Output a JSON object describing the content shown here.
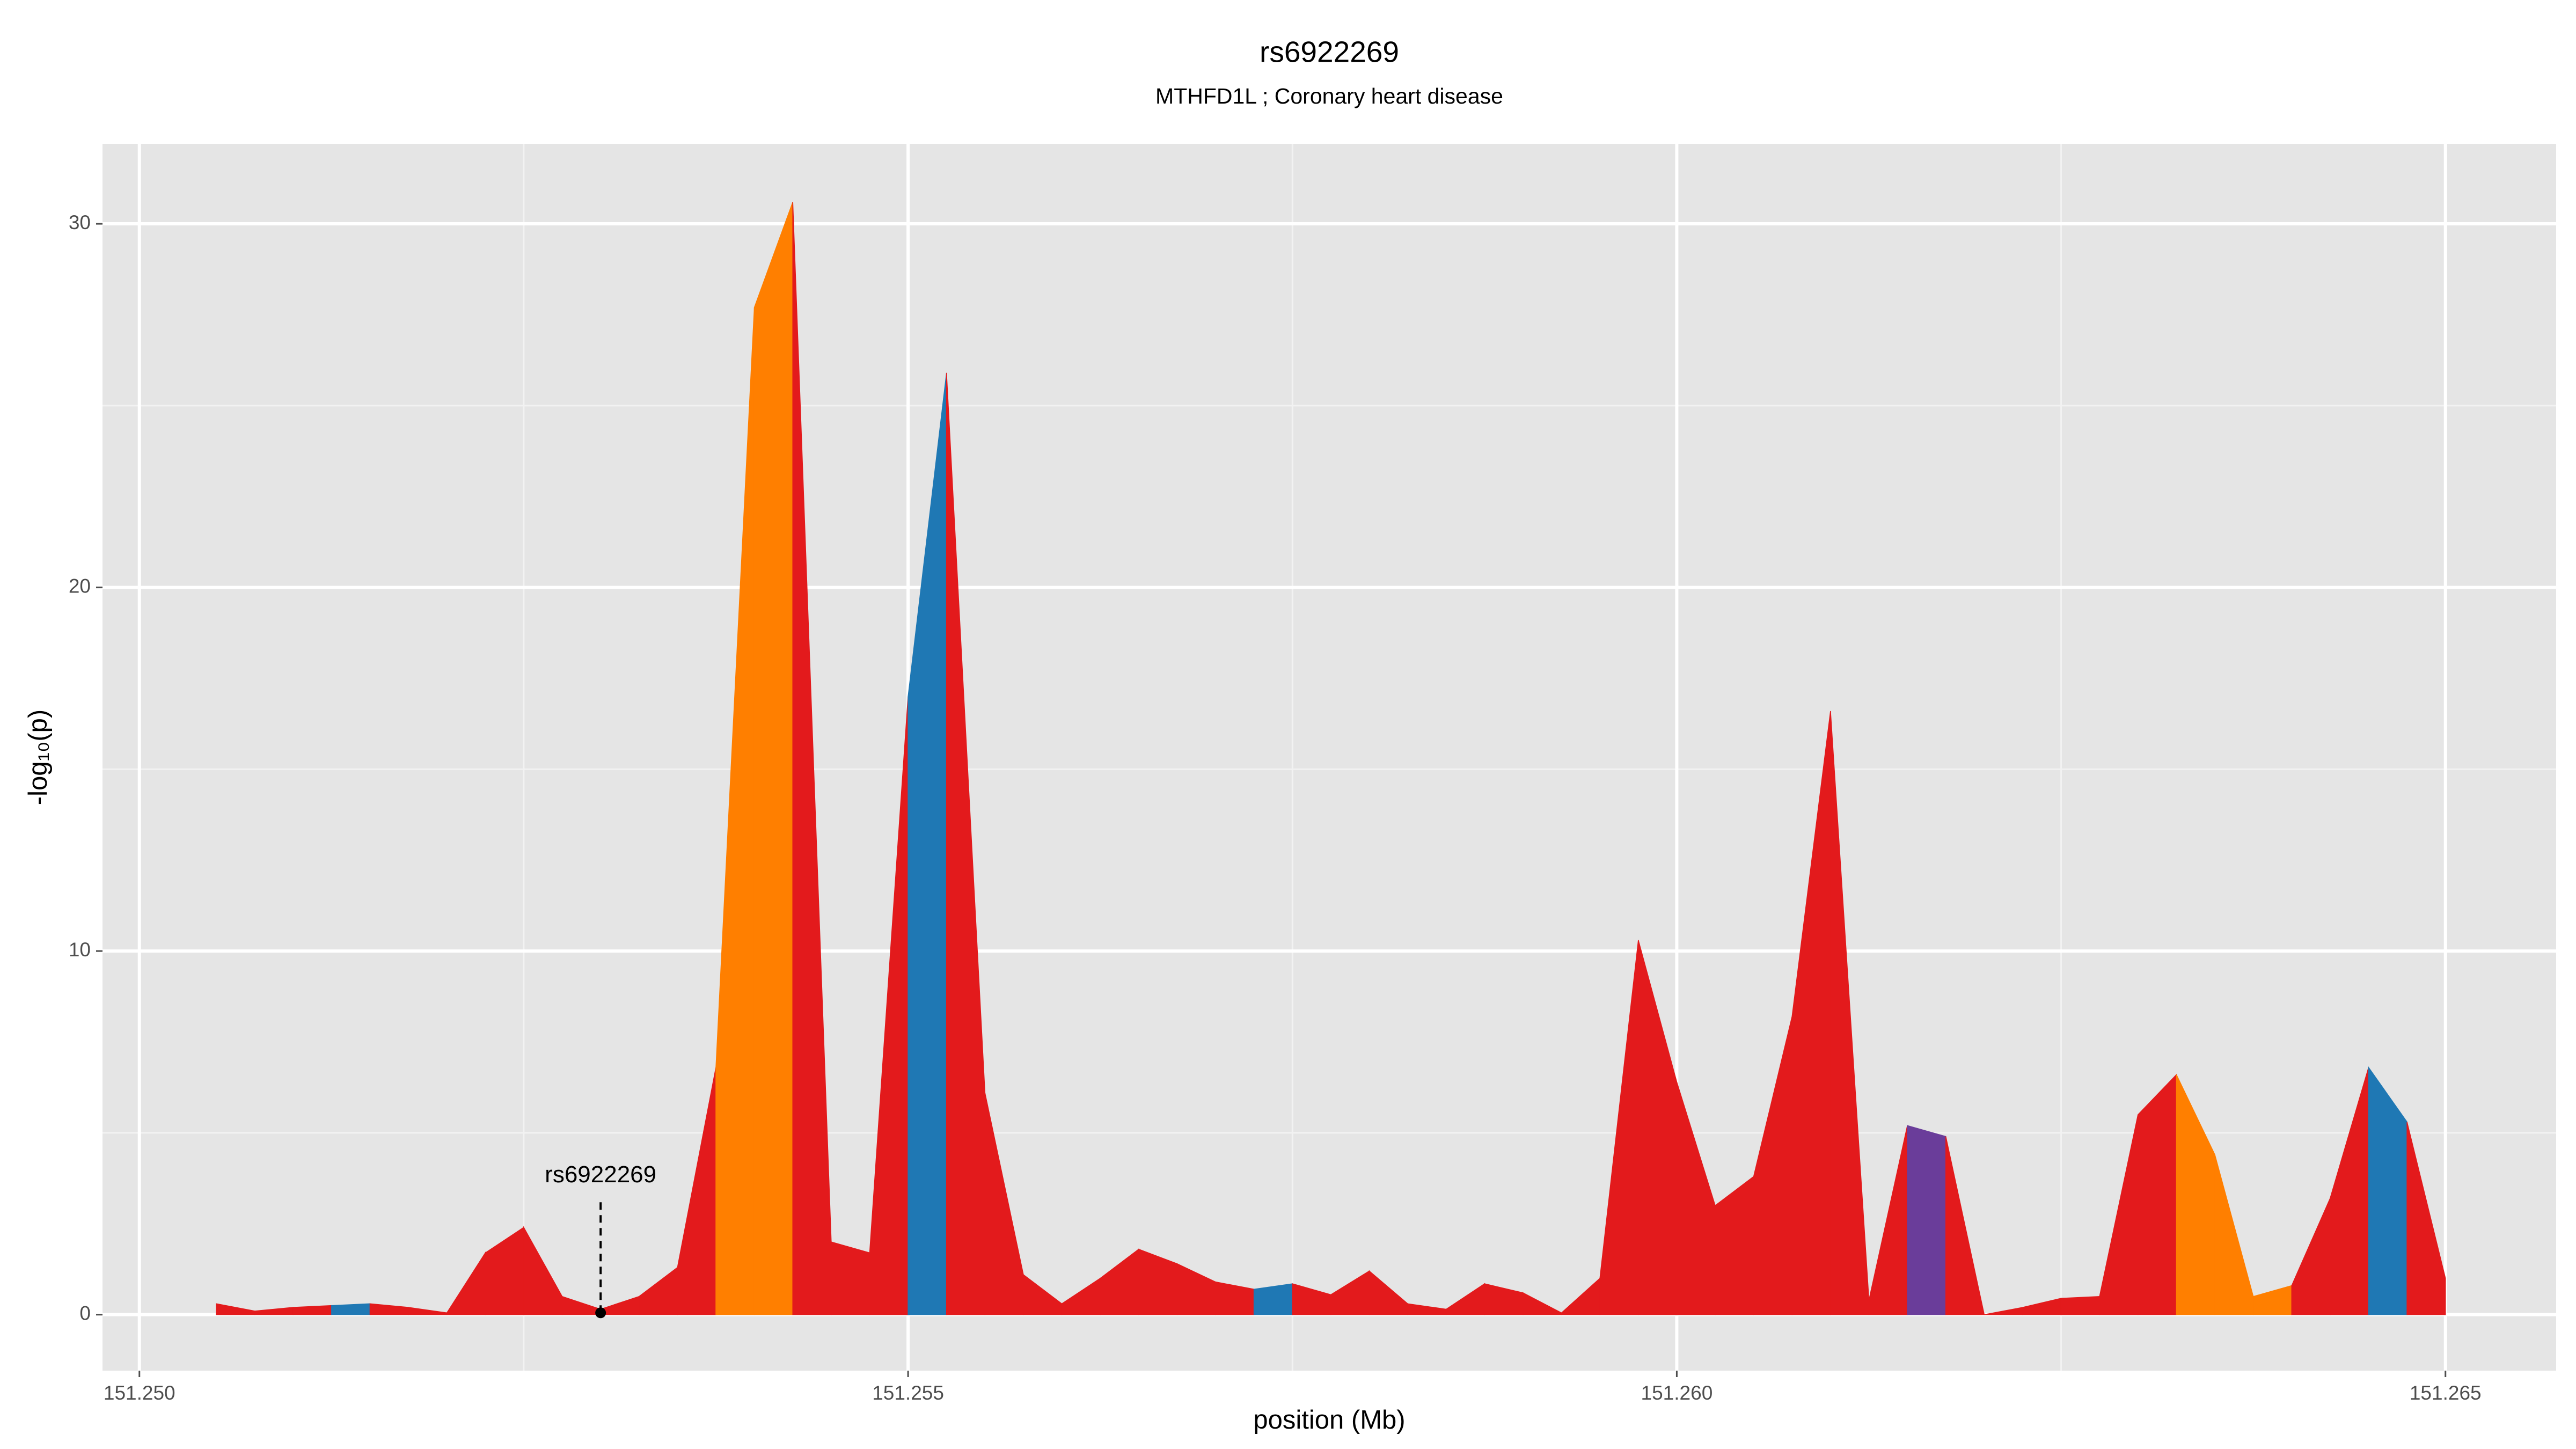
{
  "chart_data": {
    "type": "area",
    "title": "rs6922269",
    "subtitle": "MTHFD1L ; Coronary heart disease",
    "x_label": "position (Mb)",
    "y_label": "-log₁₀(p)",
    "x": [
      151.2505,
      151.25075,
      151.251,
      151.25125,
      151.2515,
      151.25175,
      151.252,
      151.25225,
      151.2525,
      151.25275,
      151.253,
      151.25325,
      151.2535,
      151.25375,
      151.254,
      151.25425,
      151.2545,
      151.25475,
      151.255,
      151.25525,
      151.2555,
      151.25575,
      151.256,
      151.25625,
      151.2565,
      151.25675,
      151.257,
      151.25725,
      151.2575,
      151.25775,
      151.258,
      151.25825,
      151.2585,
      151.25875,
      151.259,
      151.25925,
      151.2595,
      151.25975,
      151.26,
      151.26025,
      151.2605,
      151.26075,
      151.261,
      151.26125,
      151.2615,
      151.26175,
      151.262,
      151.26225,
      151.2625,
      151.26275,
      151.263,
      151.26325,
      151.2635,
      151.26375,
      151.264,
      151.26425,
      151.2645,
      151.26475,
      151.265
    ],
    "values": [
      0.3,
      0.1,
      0.2,
      0.25,
      0.3,
      0.2,
      0.05,
      1.7,
      2.4,
      0.5,
      0.15,
      0.5,
      1.3,
      6.8,
      27.7,
      30.6,
      2.0,
      1.7,
      17.0,
      25.9,
      6.1,
      1.1,
      0.3,
      1.0,
      1.8,
      1.4,
      0.9,
      0.7,
      0.85,
      0.55,
      1.2,
      0.3,
      0.15,
      0.85,
      0.6,
      0.05,
      1.0,
      10.3,
      6.4,
      3.0,
      3.8,
      8.2,
      16.6,
      0.4,
      5.2,
      4.9,
      0.0,
      0.2,
      0.45,
      0.5,
      5.5,
      6.6,
      4.4,
      0.5,
      0.8,
      3.2,
      6.8,
      5.3,
      1.0
    ],
    "segment_colors": [
      "#e31a1c",
      "#e31a1c",
      "#e31a1c",
      "#1f78b4",
      "#e31a1c",
      "#e31a1c",
      "#e31a1c",
      "#e31a1c",
      "#e31a1c",
      "#e31a1c",
      "#e31a1c",
      "#e31a1c",
      "#e31a1c",
      "#ff7f00",
      "#ff7f00",
      "#e31a1c",
      "#e31a1c",
      "#e31a1c",
      "#1f78b4",
      "#e31a1c",
      "#e31a1c",
      "#e31a1c",
      "#e31a1c",
      "#e31a1c",
      "#e31a1c",
      "#e31a1c",
      "#e31a1c",
      "#1f78b4",
      "#e31a1c",
      "#e31a1c",
      "#e31a1c",
      "#e31a1c",
      "#e31a1c",
      "#e31a1c",
      "#e31a1c",
      "#e31a1c",
      "#e31a1c",
      "#e31a1c",
      "#e31a1c",
      "#e31a1c",
      "#e31a1c",
      "#e31a1c",
      "#e31a1c",
      "#e31a1c",
      "#6a3d9a",
      "#e31a1c",
      "#e31a1c",
      "#e31a1c",
      "#e31a1c",
      "#e31a1c",
      "#e31a1c",
      "#ff7f00",
      "#ff7f00",
      "#ff7f00",
      "#e31a1c",
      "#e31a1c",
      "#1f78b4",
      "#e31a1c"
    ],
    "annotation": {
      "text": "rs6922269",
      "x": 151.253,
      "y": 0.05
    },
    "xlim": [
      151.24976,
      151.26572
    ],
    "ylim": [
      -1.54,
      32.2
    ],
    "xticks": [
      {
        "value": 151.25,
        "label": "151.250"
      },
      151.255,
      {
        "value": 151.26,
        "label": "151.260"
      },
      151.265
    ],
    "x_minor_ticks": [
      151.2525,
      151.2575,
      151.2625
    ],
    "yticks": [
      0,
      10,
      20,
      30
    ],
    "y_minor_ticks": [
      5,
      15,
      25
    ],
    "grid": true
  }
}
